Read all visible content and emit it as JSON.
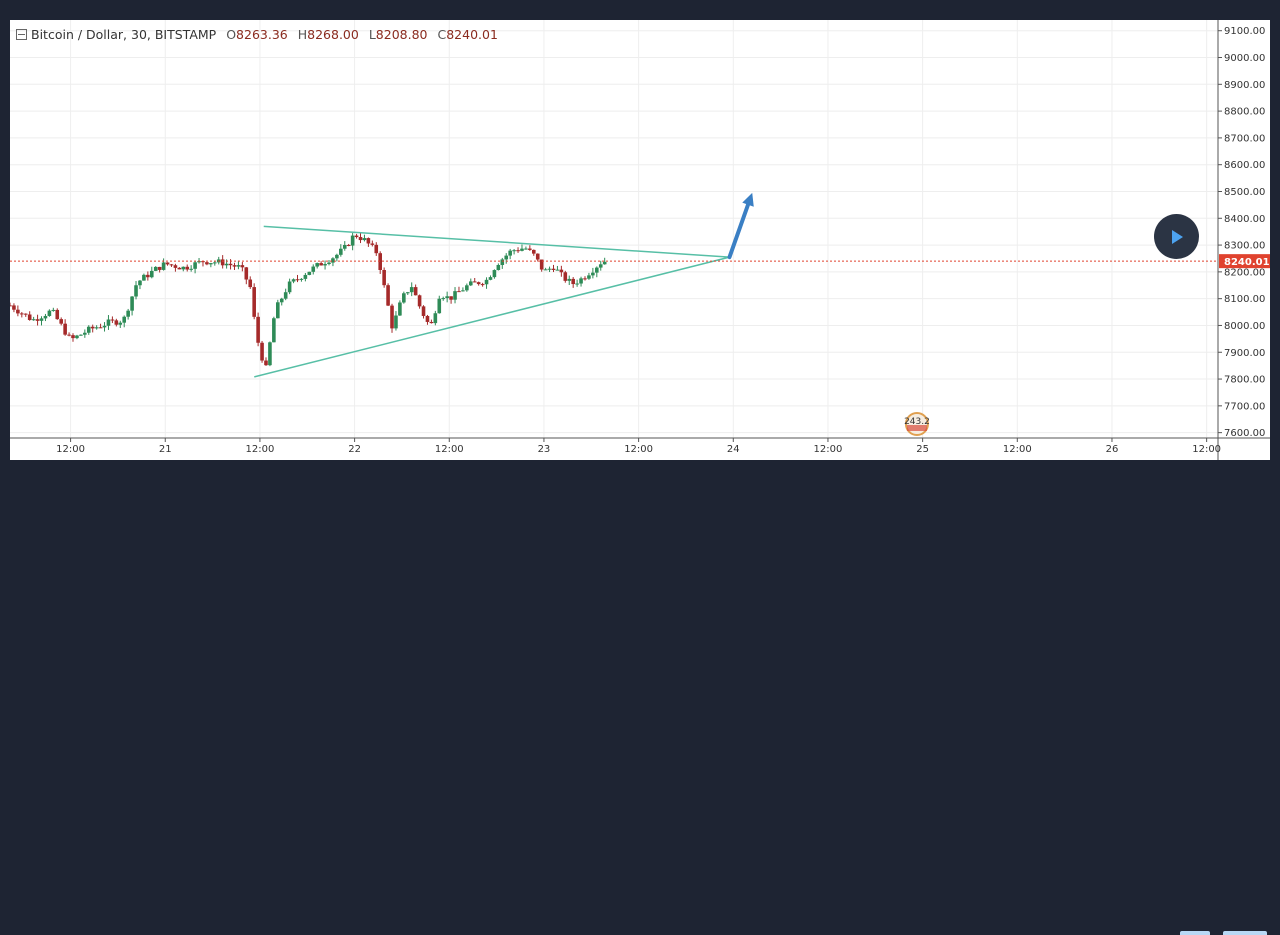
{
  "header": {
    "symbol": "Bitcoin / Dollar, 30, BITSTAMP",
    "open_label": "O",
    "open_value": "8263.36",
    "high_label": "H",
    "high_value": "8268.00",
    "low_label": "L",
    "low_value": "8208.80",
    "close_label": "C",
    "close_value": "8240.01"
  },
  "event_badge": {
    "value": "243.2"
  },
  "play_button": {
    "icon": "play-icon"
  },
  "colors": {
    "up": "#2e8b57",
    "down": "#a52a2a",
    "trendline": "#57bfa6",
    "arrow": "#3a7fc4",
    "price_line": "#e0422e",
    "price_tag": "#e0422e",
    "grid": "#eeeeee",
    "axis_text": "#333333"
  },
  "chart_data": {
    "type": "candlestick",
    "symbol": "Bitcoin / Dollar",
    "interval": "30",
    "exchange": "BITSTAMP",
    "y_axis": {
      "ticks": [
        "9100.00",
        "9000.00",
        "8900.00",
        "8800.00",
        "8700.00",
        "8600.00",
        "8500.00",
        "8400.00",
        "8300.00",
        "8200.00",
        "8100.00",
        "8000.00",
        "7900.00",
        "7800.00",
        "7700.00",
        "7600.00"
      ],
      "range": [
        7580,
        9140
      ]
    },
    "x_axis": {
      "ticks": [
        {
          "label": "12:00",
          "t": 0.5
        },
        {
          "label": "21",
          "t": 1.0
        },
        {
          "label": "12:00",
          "t": 1.5
        },
        {
          "label": "22",
          "t": 2.0
        },
        {
          "label": "12:00",
          "t": 2.5
        },
        {
          "label": "23",
          "t": 3.0
        },
        {
          "label": "12:00",
          "t": 3.5
        },
        {
          "label": "24",
          "t": 4.0
        },
        {
          "label": "12:00",
          "t": 4.5
        },
        {
          "label": "25",
          "t": 5.0
        },
        {
          "label": "12:00",
          "t": 5.5
        },
        {
          "label": "26",
          "t": 6.0
        },
        {
          "label": "12:00",
          "t": 6.5
        }
      ],
      "range": [
        0.18,
        6.56
      ]
    },
    "last_price": "8240.01",
    "price_line": 8240.01,
    "trendlines": [
      {
        "t1": 1.52,
        "p1": 8370,
        "t2": 3.98,
        "p2": 8255
      },
      {
        "t1": 1.47,
        "p1": 7808,
        "t2": 3.98,
        "p2": 8255
      }
    ],
    "arrow": {
      "t1": 3.98,
      "p1": 8255,
      "t2": 4.1,
      "p2": 8495
    },
    "anchors": [
      [
        0.18,
        8075
      ],
      [
        0.3,
        8020
      ],
      [
        0.4,
        8055
      ],
      [
        0.5,
        7945
      ],
      [
        0.6,
        7985
      ],
      [
        0.7,
        8010
      ],
      [
        0.78,
        8020
      ],
      [
        0.85,
        8160
      ],
      [
        0.95,
        8210
      ],
      [
        1.0,
        8230
      ],
      [
        1.1,
        8215
      ],
      [
        1.2,
        8240
      ],
      [
        1.3,
        8235
      ],
      [
        1.4,
        8215
      ],
      [
        1.45,
        8140
      ],
      [
        1.48,
        7965
      ],
      [
        1.53,
        7830
      ],
      [
        1.58,
        8055
      ],
      [
        1.65,
        8150
      ],
      [
        1.75,
        8200
      ],
      [
        1.82,
        8230
      ],
      [
        1.9,
        8260
      ],
      [
        1.95,
        8290
      ],
      [
        2.0,
        8340
      ],
      [
        2.05,
        8320
      ],
      [
        2.12,
        8270
      ],
      [
        2.2,
        7990
      ],
      [
        2.25,
        8100
      ],
      [
        2.3,
        8150
      ],
      [
        2.35,
        8060
      ],
      [
        2.4,
        7990
      ],
      [
        2.45,
        8120
      ],
      [
        2.5,
        8100
      ],
      [
        2.6,
        8150
      ],
      [
        2.7,
        8170
      ],
      [
        2.75,
        8230
      ],
      [
        2.83,
        8280
      ],
      [
        2.9,
        8290
      ],
      [
        2.95,
        8260
      ],
      [
        3.0,
        8200
      ],
      [
        3.05,
        8220
      ],
      [
        3.1,
        8180
      ],
      [
        3.15,
        8155
      ],
      [
        3.2,
        8175
      ],
      [
        3.25,
        8205
      ],
      [
        3.3,
        8235
      ],
      [
        3.34,
        8245
      ]
    ],
    "candle_step": 0.0208,
    "candle_count": 152,
    "event_marker": {
      "t": 4.97,
      "label": "243.2"
    }
  }
}
